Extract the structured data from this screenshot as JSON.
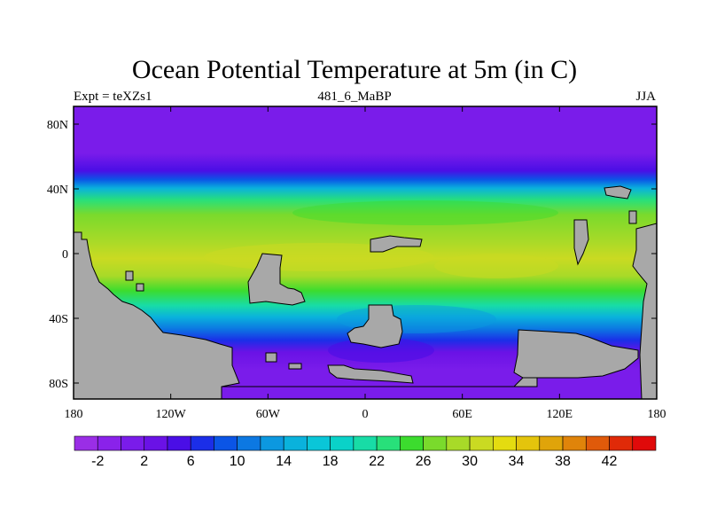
{
  "title": "Ocean Potential Temperature at 5m (in C)",
  "subtitle_left": "Expt = teXZs1",
  "subtitle_center": "481_6_MaBP",
  "subtitle_right": "JJA",
  "lat_ticks": [
    "80N",
    "40N",
    "0",
    "40S",
    "80S"
  ],
  "lon_ticks": [
    "180",
    "120W",
    "60W",
    "0",
    "60E",
    "120E",
    "180"
  ],
  "colorbar": {
    "colors": [
      "#9a2ee6",
      "#8a22ea",
      "#7a1cea",
      "#6a12e6",
      "#4a0ee6",
      "#1b2ee8",
      "#0b55e6",
      "#0c78e2",
      "#0c98e0",
      "#0ab2dc",
      "#0ac6d8",
      "#0ad2c8",
      "#18dca6",
      "#28e07a",
      "#3cdc2e",
      "#7ada2c",
      "#a8da28",
      "#cada22",
      "#e4dc10",
      "#e4c40c",
      "#e0a40a",
      "#e0840a",
      "#e05a0a",
      "#e02a08",
      "#e00a0a"
    ],
    "labels": [
      "-2",
      "2",
      "6",
      "10",
      "14",
      "18",
      "22",
      "26",
      "30",
      "34",
      "38",
      "42"
    ]
  },
  "colors": {
    "land": "#a8a8a8",
    "frame": "#000000"
  }
}
